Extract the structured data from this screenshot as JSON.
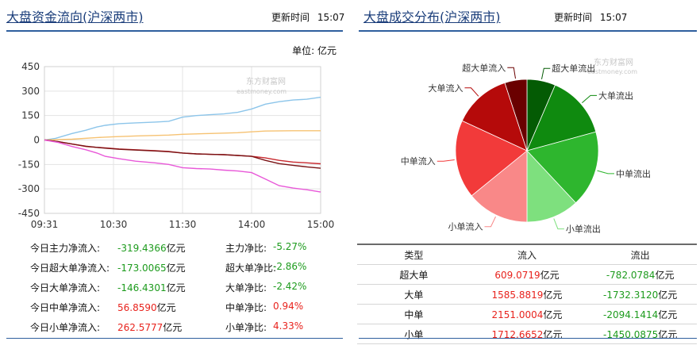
{
  "left_panel": {
    "title": "大盘资金流向(沪深两市)",
    "update_label": "更新时间",
    "update_time": "15:07",
    "unit_label": "单位: 亿元",
    "watermark": "东方财富网",
    "watermark_sub": "eastmoney.com",
    "stats": [
      {
        "label": "今日主力净流入:",
        "value": "-319.4366",
        "value_unit": "亿元",
        "sign": "neg",
        "ratio_label": "主力净比:",
        "ratio": "-5.27%",
        "ratio_sign": "neg"
      },
      {
        "label": "今日超大单净流入:",
        "value": "-173.0065",
        "value_unit": "亿元",
        "sign": "neg",
        "ratio_label": "超大单净比:",
        "ratio": "-2.86%",
        "ratio_sign": "neg"
      },
      {
        "label": "今日大单净流入:",
        "value": "-146.4301",
        "value_unit": "亿元",
        "sign": "neg",
        "ratio_label": "大单净比:",
        "ratio": "-2.42%",
        "ratio_sign": "neg"
      },
      {
        "label": "今日中单净流入:",
        "value": "56.8590",
        "value_unit": "亿元",
        "sign": "pos",
        "ratio_label": "中单净比:",
        "ratio": "0.94%",
        "ratio_sign": "pos"
      },
      {
        "label": "今日小单净流入:",
        "value": "262.5777",
        "value_unit": "亿元",
        "sign": "pos",
        "ratio_label": "小单净比:",
        "ratio": "4.33%",
        "ratio_sign": "pos"
      }
    ]
  },
  "right_panel": {
    "title": "大盘成交分布(沪深两市)",
    "update_label": "更新时间",
    "update_time": "15:07",
    "watermark": "东方财富网",
    "watermark_sub": "eastmoney.com",
    "table": {
      "headers": [
        "类型",
        "流入",
        "流出"
      ],
      "rows": [
        {
          "type": "超大单",
          "in": "609.0719",
          "out": "-782.0784"
        },
        {
          "type": "大单",
          "in": "1585.8819",
          "out": "-1732.3120"
        },
        {
          "type": "中单",
          "in": "2151.0004",
          "out": "-2094.1414"
        },
        {
          "type": "小单",
          "in": "1712.6652",
          "out": "-1450.0875"
        }
      ],
      "unit": "亿元"
    }
  },
  "chart_data": [
    {
      "type": "line",
      "title": "",
      "x_ticks": [
        "09:31",
        "10:30",
        "11:30",
        "14:00",
        "15:00"
      ],
      "y_ticks": [
        450,
        300,
        150,
        0,
        -150,
        -300,
        -450
      ],
      "ylim": [
        -450,
        450
      ],
      "grid": true,
      "legend": "none",
      "series": [
        {
          "color": "#8cc5ea",
          "x": [
            0,
            0.04,
            0.1,
            0.15,
            0.19,
            0.22,
            0.27,
            0.33,
            0.4,
            0.45,
            0.5,
            0.55,
            0.6,
            0.65,
            0.7,
            0.75,
            0.8,
            0.85,
            0.9,
            0.95,
            1.0
          ],
          "y": [
            0,
            10,
            40,
            60,
            80,
            90,
            100,
            105,
            110,
            115,
            140,
            150,
            155,
            160,
            170,
            190,
            220,
            235,
            245,
            250,
            262
          ]
        },
        {
          "color": "#f6c272",
          "x": [
            0,
            0.1,
            0.19,
            0.25,
            0.33,
            0.45,
            0.5,
            0.6,
            0.7,
            0.75,
            0.8,
            0.9,
            1.0
          ],
          "y": [
            0,
            5,
            15,
            20,
            25,
            30,
            35,
            40,
            45,
            50,
            55,
            57,
            57
          ]
        },
        {
          "color": "#c8282e",
          "x": [
            0,
            0.05,
            0.1,
            0.15,
            0.19,
            0.22,
            0.27,
            0.33,
            0.4,
            0.45,
            0.5,
            0.55,
            0.6,
            0.65,
            0.7,
            0.75,
            0.8,
            0.85,
            0.9,
            0.95,
            1.0
          ],
          "y": [
            0,
            -10,
            -25,
            -40,
            -45,
            -48,
            -55,
            -60,
            -65,
            -70,
            -80,
            -85,
            -88,
            -90,
            -95,
            -100,
            -110,
            -125,
            -135,
            -140,
            -146
          ]
        },
        {
          "color": "#7a1214",
          "x": [
            0,
            0.05,
            0.1,
            0.15,
            0.19,
            0.22,
            0.27,
            0.33,
            0.4,
            0.45,
            0.5,
            0.55,
            0.6,
            0.65,
            0.7,
            0.75,
            0.8,
            0.85,
            0.9,
            0.95,
            1.0
          ],
          "y": [
            0,
            -10,
            -25,
            -38,
            -45,
            -50,
            -57,
            -62,
            -67,
            -72,
            -80,
            -85,
            -88,
            -90,
            -95,
            -100,
            -125,
            -145,
            -155,
            -165,
            -173
          ]
        },
        {
          "color": "#e858d8",
          "x": [
            0,
            0.05,
            0.1,
            0.15,
            0.19,
            0.22,
            0.27,
            0.33,
            0.4,
            0.45,
            0.5,
            0.55,
            0.6,
            0.65,
            0.7,
            0.75,
            0.8,
            0.85,
            0.9,
            0.95,
            1.0
          ],
          "y": [
            0,
            -15,
            -40,
            -60,
            -80,
            -100,
            -115,
            -130,
            -140,
            -150,
            -170,
            -175,
            -178,
            -185,
            -190,
            -200,
            -240,
            -280,
            -295,
            -305,
            -319
          ]
        }
      ]
    },
    {
      "type": "pie",
      "title": "",
      "slices": [
        {
          "label": "超大单流出",
          "value": 782.0784,
          "color": "#045b04"
        },
        {
          "label": "大单流出",
          "value": 1732.312,
          "color": "#0f8a0f"
        },
        {
          "label": "中单流出",
          "value": 2094.1414,
          "color": "#2eb62e"
        },
        {
          "label": "小单流出",
          "value": 1450.0875,
          "color": "#7ee07e"
        },
        {
          "label": "小单流入",
          "value": 1712.6652,
          "color": "#f98888"
        },
        {
          "label": "中单流入",
          "value": 2151.0004,
          "color": "#f23a3a"
        },
        {
          "label": "大单流入",
          "value": 1585.8819,
          "color": "#b50a0a"
        },
        {
          "label": "超大单流入",
          "value": 609.0719,
          "color": "#6a0000"
        }
      ],
      "label_color": "#333333"
    }
  ]
}
